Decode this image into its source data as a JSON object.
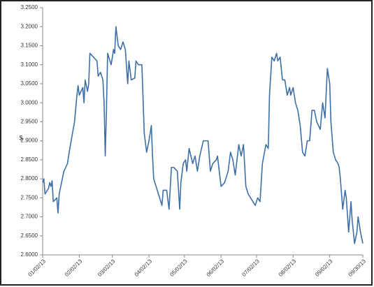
{
  "chart_data": {
    "type": "line",
    "ylabel": "$",
    "x": [
      "01/02/13",
      "01/03/13",
      "01/04/13",
      "01/07/13",
      "01/08/13",
      "01/09/13",
      "01/10/13",
      "01/11/13",
      "01/14/13",
      "01/15/13",
      "01/16/13",
      "01/18/13",
      "01/20/13",
      "01/23/13",
      "01/25/13",
      "01/29/13",
      "01/31/13",
      "02/01/13",
      "02/02/13",
      "02/05/13",
      "02/06/13",
      "02/07/13",
      "02/09/13",
      "02/10/13",
      "02/11/13",
      "02/14/13",
      "02/17/13",
      "02/18/13",
      "02/20/13",
      "02/22/13",
      "02/23/13",
      "02/24/13",
      "02/25/13",
      "02/26/13",
      "03/01/13",
      "03/03/13",
      "03/04/13",
      "03/05/13",
      "03/07/13",
      "03/09/13",
      "03/11/13",
      "03/13/13",
      "03/15/13",
      "03/16/13",
      "03/18/13",
      "03/21/13",
      "03/22/13",
      "03/24/13",
      "03/27/13",
      "03/29/13",
      "03/31/13",
      "04/02/13",
      "04/04/13",
      "04/05/13",
      "04/06/13",
      "04/09/13",
      "04/11/13",
      "04/13/13",
      "04/14/13",
      "04/17/13",
      "04/19/13",
      "04/21/13",
      "04/23/13",
      "04/26/13",
      "04/28/13",
      "04/29/13",
      "05/01/13",
      "05/03/13",
      "05/04/13",
      "05/06/13",
      "05/09/13",
      "05/11/13",
      "05/13/13",
      "05/15/13",
      "05/18/13",
      "05/22/13",
      "05/24/13",
      "05/26/13",
      "05/29/13",
      "05/30/13",
      "06/02/13",
      "06/05/13",
      "06/08/13",
      "06/10/13",
      "06/12/13",
      "06/14/13",
      "06/17/13",
      "06/19/13",
      "06/21/13",
      "06/23/13",
      "06/25/13",
      "06/28/13",
      "07/01/13",
      "07/03/13",
      "07/05/13",
      "07/07/13",
      "07/10/13",
      "07/12/13",
      "07/13/13",
      "07/15/13",
      "07/17/13",
      "07/19/13",
      "07/20/13",
      "07/22/13",
      "07/24/13",
      "07/26/13",
      "07/28/13",
      "07/30/13",
      "07/31/13",
      "08/02/13",
      "08/04/13",
      "08/06/13",
      "08/08/13",
      "08/10/13",
      "08/12/13",
      "08/14/13",
      "08/16/13",
      "08/18/13",
      "08/20/13",
      "08/22/13",
      "08/25/13",
      "08/27/13",
      "08/29/13",
      "08/31/13",
      "09/02/13",
      "09/03/13",
      "09/05/13",
      "09/07/13",
      "09/09/13",
      "09/10/13",
      "09/11/13",
      "09/13/13",
      "09/15/13",
      "09/16/13",
      "09/18/13",
      "09/20/13",
      "09/21/13",
      "09/23/13",
      "09/25/13",
      "09/26/13",
      "09/28/13",
      "09/30/13"
    ],
    "series": [
      {
        "color": "#3e6fa8",
        "values": [
          2.79,
          2.8,
          2.76,
          2.775,
          2.79,
          2.78,
          2.795,
          2.74,
          2.75,
          2.71,
          2.76,
          2.79,
          2.82,
          2.84,
          2.88,
          2.95,
          3.02,
          3.045,
          3.02,
          3.04,
          3.0,
          3.06,
          3.03,
          3.05,
          3.13,
          3.12,
          3.11,
          3.07,
          3.08,
          3.06,
          3.0,
          2.86,
          2.98,
          3.13,
          3.1,
          3.14,
          3.13,
          3.2,
          3.15,
          3.14,
          3.16,
          3.14,
          3.05,
          3.11,
          3.06,
          3.065,
          3.11,
          3.1,
          3.1,
          2.92,
          2.87,
          2.9,
          2.94,
          2.86,
          2.8,
          2.77,
          2.75,
          2.73,
          2.77,
          2.77,
          2.72,
          2.83,
          2.83,
          2.82,
          2.72,
          2.79,
          2.84,
          2.85,
          2.82,
          2.88,
          2.84,
          2.86,
          2.82,
          2.86,
          2.9,
          2.9,
          2.82,
          2.84,
          2.85,
          2.86,
          2.78,
          2.79,
          2.82,
          2.87,
          2.85,
          2.81,
          2.89,
          2.86,
          2.89,
          2.78,
          2.76,
          2.745,
          2.73,
          2.75,
          2.74,
          2.84,
          2.89,
          2.88,
          3.02,
          3.12,
          3.11,
          3.13,
          3.11,
          3.12,
          3.06,
          3.06,
          3.02,
          3.04,
          3.02,
          3.04,
          3.0,
          2.98,
          2.94,
          2.87,
          2.86,
          2.9,
          2.9,
          2.98,
          2.98,
          2.95,
          2.93,
          3.0,
          2.96,
          3.09,
          3.05,
          2.95,
          2.87,
          2.85,
          2.84,
          2.83,
          2.8,
          2.72,
          2.77,
          2.75,
          2.66,
          2.74,
          2.69,
          2.63,
          2.66,
          2.7,
          2.66,
          2.63
        ]
      }
    ],
    "xlim": [
      "01/02/13",
      "09/30/13"
    ],
    "xticks": [
      "01/02/13",
      "02/02/13",
      "03/02/13",
      "04/02/13",
      "05/02/13",
      "06/02/13",
      "07/02/13",
      "08/02/13",
      "09/02/13",
      "09/30/13"
    ],
    "ylim": [
      2.6,
      3.25
    ],
    "yticks": [
      {
        "value": 2.6,
        "label": "2.6000"
      },
      {
        "value": 2.65,
        "label": "2.6500"
      },
      {
        "value": 2.7,
        "label": "2.7000"
      },
      {
        "value": 2.75,
        "label": "2.7500"
      },
      {
        "value": 2.8,
        "label": "2.8000"
      },
      {
        "value": 2.85,
        "label": "2.8500"
      },
      {
        "value": 2.9,
        "label": "2.9000"
      },
      {
        "value": 2.95,
        "label": "2.9500"
      },
      {
        "value": 3.0,
        "label": "3.0000"
      },
      {
        "value": 3.05,
        "label": "3.0500"
      },
      {
        "value": 3.1,
        "label": "3.1000"
      },
      {
        "value": 3.15,
        "label": "3.1500"
      },
      {
        "value": 3.2,
        "label": "3.2000"
      },
      {
        "value": 3.25,
        "label": "3.2500"
      }
    ],
    "grid": false
  }
}
